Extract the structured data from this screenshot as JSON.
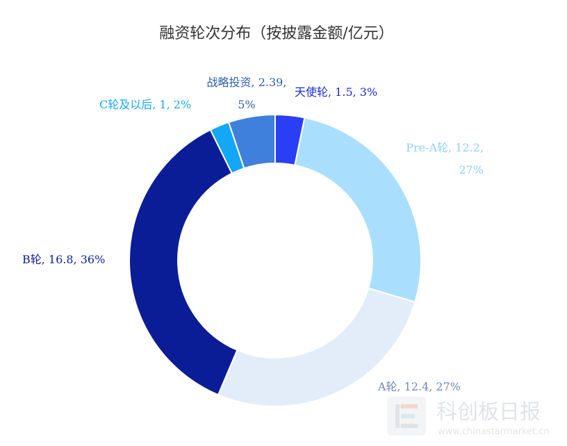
{
  "chart_data": {
    "type": "pie",
    "title": "融资轮次分布（按披露金额/亿元）",
    "donut": true,
    "slices": [
      {
        "name": "天使轮",
        "value": 1.5,
        "percent": "3%",
        "color": "#2a3ff5",
        "label_lines": [
          "天使轮, 1.5, 3%"
        ],
        "label_color": "#1a2ad6"
      },
      {
        "name": "Pre-A轮",
        "value": 12.2,
        "percent": "27%",
        "color": "#a9dffd",
        "label_lines": [
          "Pre-A轮, 12.2,",
          "27%"
        ],
        "label_color": "#8fd0fb"
      },
      {
        "name": "A轮",
        "value": 12.4,
        "percent": "27%",
        "color": "#e2edf9",
        "label_lines": [
          "A轮, 12.4, 27%"
        ],
        "label_color": "#6f87b3"
      },
      {
        "name": "B轮",
        "value": 16.8,
        "percent": "36%",
        "color": "#0b1d96",
        "label_lines": [
          "B轮, 16.8, 36%"
        ],
        "label_color": "#0b1d96"
      },
      {
        "name": "C轮及以后",
        "value": 1,
        "percent": "2%",
        "color": "#14a6f7",
        "label_lines": [
          "C轮及以后, 1, 2%"
        ],
        "label_color": "#14a6f7"
      },
      {
        "name": "战略投资",
        "value": 2.39,
        "percent": "5%",
        "color": "#4080dd",
        "label_lines": [
          "战略投资, 2.39,",
          "5%"
        ],
        "label_color": "#2f5fa8"
      }
    ]
  },
  "watermark": {
    "name": "科创板日报",
    "url": "www.chinastarmarket.cn"
  }
}
